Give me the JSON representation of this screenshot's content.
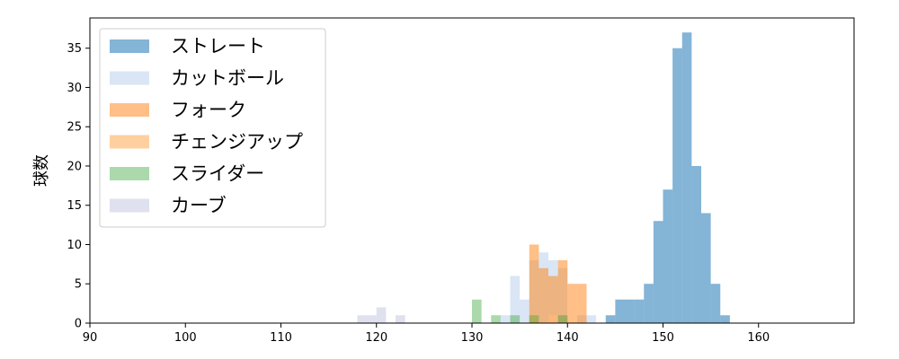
{
  "chart_data": {
    "type": "histogram",
    "xlabel": "",
    "ylabel": "球数",
    "xlim": [
      90,
      170
    ],
    "ylim": [
      0,
      38.85
    ],
    "xticks": [
      "90",
      "100",
      "110",
      "120",
      "130",
      "140",
      "150",
      "160"
    ],
    "yticks": [
      "0",
      "5",
      "10",
      "15",
      "20",
      "25",
      "30",
      "35"
    ],
    "bin_width": 1,
    "grid": false,
    "legend_position": "top-left",
    "series": [
      {
        "name": "ストレート",
        "color": "#1f77b4",
        "opacity": 0.55,
        "bins": [
          [
            144,
            1
          ],
          [
            145,
            3
          ],
          [
            146,
            3
          ],
          [
            147,
            3
          ],
          [
            148,
            5
          ],
          [
            149,
            13
          ],
          [
            150,
            17
          ],
          [
            151,
            35
          ],
          [
            152,
            37
          ],
          [
            153,
            20
          ],
          [
            154,
            14
          ],
          [
            155,
            5
          ],
          [
            156,
            1
          ]
        ]
      },
      {
        "name": "カットボール",
        "color": "#aec7e8",
        "opacity": 0.45,
        "bins": [
          [
            133,
            1
          ],
          [
            134,
            6
          ],
          [
            135,
            3
          ],
          [
            136,
            8
          ],
          [
            137,
            9
          ],
          [
            138,
            8
          ],
          [
            139,
            7
          ],
          [
            141,
            1
          ],
          [
            142,
            1
          ]
        ]
      },
      {
        "name": "フォーク",
        "color": "#ff7f0e",
        "opacity": 0.5,
        "bins": [
          [
            136,
            10
          ],
          [
            137,
            7
          ],
          [
            138,
            6
          ],
          [
            139,
            8
          ],
          [
            140,
            5
          ],
          [
            141,
            5
          ]
        ]
      },
      {
        "name": "チェンジアップ",
        "color": "#ffbb78",
        "opacity": 0.7,
        "bins": [
          [
            136,
            1
          ],
          [
            138,
            1
          ]
        ]
      },
      {
        "name": "スライダー",
        "color": "#2ca02c",
        "opacity": 0.4,
        "bins": [
          [
            130,
            3
          ],
          [
            132,
            1
          ],
          [
            134,
            1
          ],
          [
            136,
            1
          ],
          [
            139,
            1
          ]
        ]
      },
      {
        "name": "カーブ",
        "color": "#c5c8e0",
        "opacity": 0.55,
        "bins": [
          [
            118,
            1
          ],
          [
            119,
            1
          ],
          [
            120,
            2
          ],
          [
            122,
            1
          ]
        ]
      }
    ]
  }
}
